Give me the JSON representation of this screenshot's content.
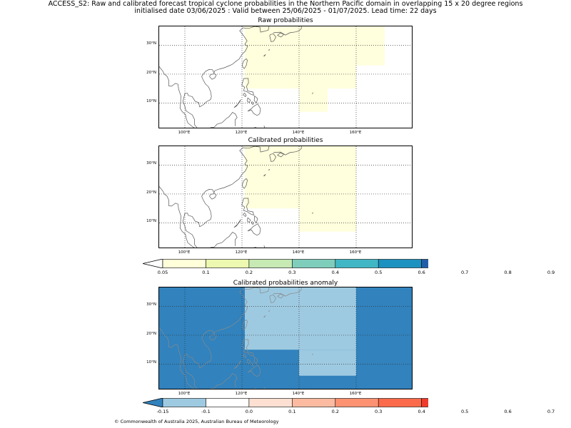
{
  "header": {
    "line1": "ACCESS_S2: Raw and calibrated forecast tropical cyclone probabilities in the Northern Pacific domain in overlapping 15 x 20 degree regions",
    "line2": "initialised date 03/06/2025 :  Valid between 25/06/2025 - 01/07/2025. Lead time: 22 days"
  },
  "panels": [
    {
      "id": "raw",
      "title": "Raw probabilities"
    },
    {
      "id": "cal",
      "title": "Calibrated probabilities"
    },
    {
      "id": "anom",
      "title": "Calibrated probabilities anomaly"
    }
  ],
  "map": {
    "lon_range": [
      91,
      180
    ],
    "lat_range": [
      1,
      36.5
    ],
    "lat_labels": [
      "30°N",
      "20°N",
      "10°N"
    ],
    "lon_labels": [
      "100°E",
      "120°E",
      "140°E",
      "160°E"
    ],
    "grid_lats": [
      30,
      20,
      10
    ],
    "grid_lons": [
      100,
      120,
      140,
      160
    ]
  },
  "probability_regions": {
    "raw": [
      {
        "lon": [
          121,
          160
        ],
        "lat": [
          15,
          36.5
        ],
        "category": "0.05-0.1"
      },
      {
        "lon": [
          140,
          150
        ],
        "lat": [
          7,
          15
        ],
        "category": "0.05-0.1"
      },
      {
        "lon": [
          160,
          170
        ],
        "lat": [
          23,
          36.5
        ],
        "category": "0.05-0.1"
      }
    ],
    "cal": [
      {
        "lon": [
          121,
          160
        ],
        "lat": [
          15,
          36.5
        ],
        "category": "0.05-0.1"
      },
      {
        "lon": [
          140,
          160
        ],
        "lat": [
          7,
          15
        ],
        "category": "0.05-0.1"
      }
    ],
    "anom": [
      {
        "lon": [
          91,
          180
        ],
        "lat": [
          1,
          36.5
        ],
        "category": "-0.15 to -0.1"
      },
      {
        "lon": [
          121,
          160
        ],
        "lat": [
          15,
          36.5
        ],
        "category": "-0.1 to 0.0"
      },
      {
        "lon": [
          140,
          160
        ],
        "lat": [
          6,
          15
        ],
        "category": "-0.1 to 0.0"
      }
    ]
  },
  "colorbar_prob": {
    "ticks": [
      "0.05",
      "0.1",
      "0.2",
      "0.3",
      "0.4",
      "0.5",
      "0.6",
      "0.7",
      "0.8",
      "0.9"
    ],
    "colors": [
      "#ffffd9",
      "#edf8b1",
      "#c7e9b4",
      "#7fcdbb",
      "#41b6c4",
      "#1d91c0",
      "#225ea8",
      "#253494",
      "#081d58"
    ],
    "under": "#ffffff",
    "over": "#081d58"
  },
  "colorbar_anom": {
    "ticks": [
      "-0.15",
      "-0.1",
      "0.0",
      "0.1",
      "0.2",
      "0.3",
      "0.4",
      "0.5",
      "0.6",
      "0.7"
    ],
    "colors": [
      "#9ecae1",
      "#ffffff",
      "#fee0d2",
      "#fcbba1",
      "#fc9272",
      "#fb6a4a",
      "#ef3b2c",
      "#cb181d",
      "#a50f15"
    ],
    "under": "#3182bd",
    "over": "#67000d"
  },
  "colors": {
    "prob_low": "#ffffdd",
    "anom_strong_neg": "#3182bd",
    "anom_weak_neg": "#9ecae1",
    "coast": "#555555",
    "coast_on_anom": "#8a8a8a"
  },
  "footer": "© Commonwealth of Australia 2025, Australian Bureau of Meteorology"
}
